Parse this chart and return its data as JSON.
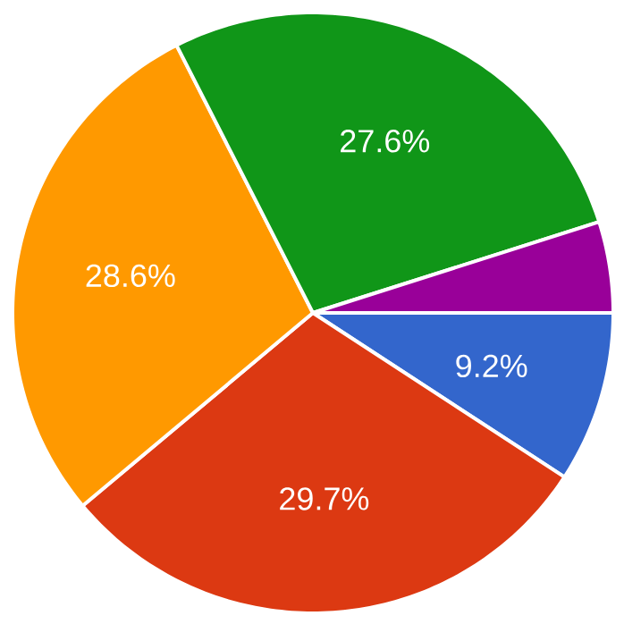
{
  "chart_data": {
    "type": "pie",
    "categories": [
      null,
      null,
      null,
      null,
      null
    ],
    "values": [
      9.2,
      29.7,
      28.6,
      27.6,
      4.9
    ],
    "colors": [
      "#3366cc",
      "#dc3912",
      "#ff9900",
      "#109618",
      "#990099"
    ],
    "value_labels": [
      "9.2%",
      "29.7%",
      "28.6%",
      "27.6%",
      null
    ]
  }
}
